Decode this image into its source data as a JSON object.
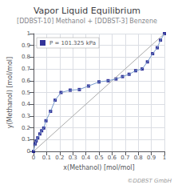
{
  "chart_data": {
    "type": "line",
    "title": "Vapor Liquid Equilibrium",
    "subtitle": "[DDBST-10] Methanol + [DDBST-3] Benzene",
    "xlabel": "x(Methanol) [mol/mol]",
    "ylabel": "y(Methanol) [mol/mol]",
    "annotations": [
      "©DDBST GmbH"
    ],
    "series": [
      {
        "type": "line",
        "color": "#aaaaaa",
        "x": [
          0,
          1
        ],
        "values": [
          0,
          1
        ]
      },
      {
        "type": "line",
        "color": "#7799cc",
        "x": [
          0.0,
          0.012,
          0.02,
          0.032,
          0.048,
          0.062,
          0.078,
          0.095,
          0.13,
          0.165,
          0.21,
          0.28,
          0.35,
          0.42,
          0.5,
          0.57,
          0.63,
          0.68,
          0.73,
          0.78,
          0.83,
          0.87,
          0.91,
          0.945,
          0.97,
          1.0
        ],
        "values": [
          0.0,
          0.063,
          0.088,
          0.115,
          0.148,
          0.175,
          0.198,
          0.26,
          0.34,
          0.435,
          0.5,
          0.52,
          0.525,
          0.555,
          0.59,
          0.6,
          0.615,
          0.635,
          0.655,
          0.685,
          0.7,
          0.76,
          0.83,
          0.88,
          0.945,
          1.0
        ]
      },
      {
        "type": "scatter",
        "name": "P = 101.325 kPa",
        "color": "#000080",
        "marker": "square",
        "x": [
          0.0,
          0.012,
          0.02,
          0.032,
          0.048,
          0.062,
          0.078,
          0.095,
          0.13,
          0.165,
          0.21,
          0.28,
          0.35,
          0.42,
          0.5,
          0.57,
          0.63,
          0.68,
          0.73,
          0.78,
          0.83,
          0.87,
          0.91,
          0.945,
          0.97,
          1.0
        ],
        "values": [
          0.0,
          0.063,
          0.088,
          0.115,
          0.148,
          0.175,
          0.198,
          0.26,
          0.34,
          0.435,
          0.5,
          0.52,
          0.525,
          0.555,
          0.59,
          0.6,
          0.615,
          0.635,
          0.655,
          0.685,
          0.7,
          0.76,
          0.83,
          0.88,
          0.945,
          1.0
        ]
      }
    ],
    "xlim": [
      0,
      1
    ],
    "ylim": [
      0,
      1
    ],
    "xticks": [
      0.0,
      0.1,
      0.2,
      0.3,
      0.4,
      0.5,
      0.6,
      0.7,
      0.8,
      0.9,
      1.0
    ],
    "yticks": [
      0.0,
      0.1,
      0.2,
      0.3,
      0.4,
      0.5,
      0.6,
      0.7,
      0.8,
      0.9,
      1.0
    ],
    "grid": true,
    "legend": "upper left"
  }
}
